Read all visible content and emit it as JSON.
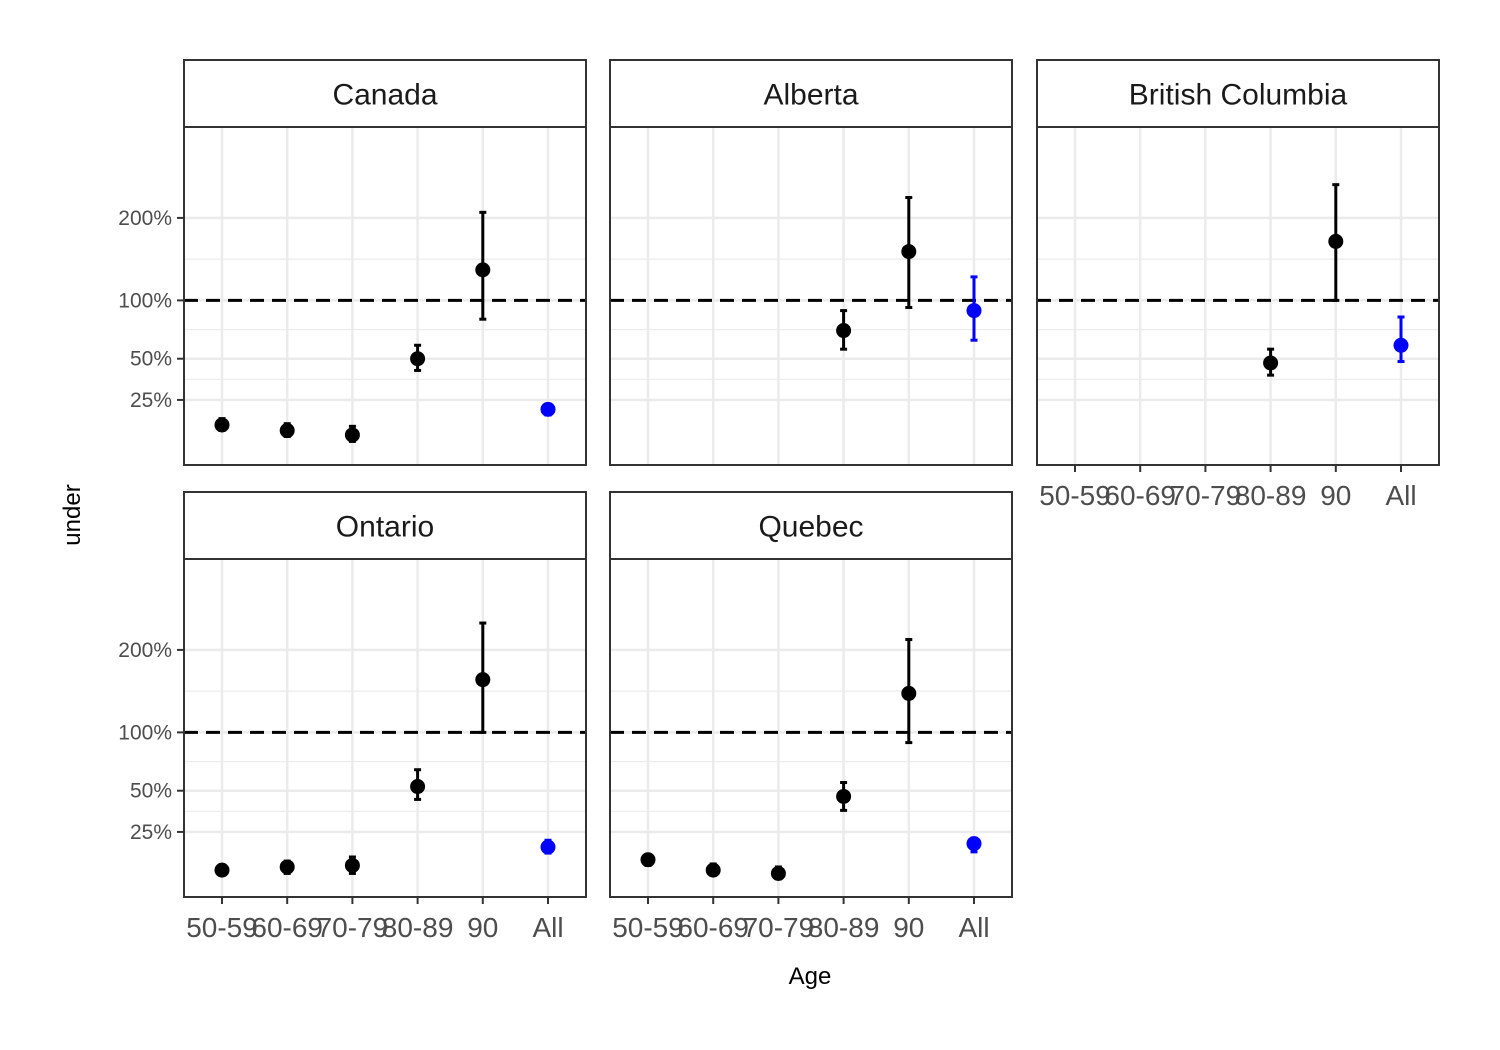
{
  "colors": {
    "point": "#000000",
    "all_point": "#0000ff",
    "grid": "#ebebeb",
    "frame": "#333333",
    "strip_fill": "#ffffff",
    "reference_line": "#000000"
  },
  "chart_data": {
    "type": "scatter",
    "geometry": "point-with-errorbars",
    "facet_layout": "3 columns x 2 rows",
    "xlabel": "Age",
    "ylabel": "under",
    "x_categories": [
      "50-59",
      "60-69",
      "70-79",
      "80-89",
      "90",
      "All"
    ],
    "x_tick_labels": [
      "50-59",
      "60-69",
      "70-79",
      "80-89",
      "90",
      "All"
    ],
    "y_scale": "sqrt",
    "y_ticks": [
      0.25,
      0.5,
      1.0,
      2.0
    ],
    "y_tick_labels": [
      "25%",
      "50%",
      "100%",
      "200%"
    ],
    "ylim": [
      0.03,
      3.5
    ],
    "reference_line": {
      "y": 1.0,
      "style": "dashed"
    },
    "grid": true,
    "panels": [
      {
        "name": "Canada",
        "points": [
          {
            "x": "50-59",
            "y": 0.14,
            "ymin": 0.12,
            "ymax": 0.165
          },
          {
            "x": "60-69",
            "y": 0.12,
            "ymin": 0.1,
            "ymax": 0.145
          },
          {
            "x": "70-79",
            "y": 0.105,
            "ymin": 0.085,
            "ymax": 0.135
          },
          {
            "x": "80-89",
            "y": 0.5,
            "ymin": 0.42,
            "ymax": 0.6
          },
          {
            "x": "90",
            "y": 1.33,
            "ymin": 0.82,
            "ymax": 2.08
          },
          {
            "x": "All",
            "y": 0.205,
            "ymin": 0.18,
            "ymax": 0.23
          }
        ]
      },
      {
        "name": "Alberta",
        "points": [
          {
            "x": "80-89",
            "y": 0.72,
            "ymin": 0.57,
            "ymax": 0.9
          },
          {
            "x": "90",
            "y": 1.55,
            "ymin": 0.93,
            "ymax": 2.3
          },
          {
            "x": "All",
            "y": 0.9,
            "ymin": 0.64,
            "ymax": 1.25
          }
        ]
      },
      {
        "name": "British Columbia",
        "points": [
          {
            "x": "80-89",
            "y": 0.47,
            "ymin": 0.39,
            "ymax": 0.57
          },
          {
            "x": "90",
            "y": 1.68,
            "ymin": 1.0,
            "ymax": 2.5
          },
          {
            "x": "All",
            "y": 0.6,
            "ymin": 0.48,
            "ymax": 0.84
          }
        ]
      },
      {
        "name": "Ontario",
        "points": [
          {
            "x": "50-59",
            "y": 0.095,
            "ymin": 0.08,
            "ymax": 0.11
          },
          {
            "x": "60-69",
            "y": 0.105,
            "ymin": 0.085,
            "ymax": 0.125
          },
          {
            "x": "70-79",
            "y": 0.11,
            "ymin": 0.085,
            "ymax": 0.14
          },
          {
            "x": "80-89",
            "y": 0.53,
            "ymin": 0.44,
            "ymax": 0.66
          },
          {
            "x": "90",
            "y": 1.6,
            "ymin": 1.0,
            "ymax": 2.4
          },
          {
            "x": "All",
            "y": 0.18,
            "ymin": 0.155,
            "ymax": 0.21
          }
        ]
      },
      {
        "name": "Quebec",
        "points": [
          {
            "x": "50-59",
            "y": 0.13,
            "ymin": 0.11,
            "ymax": 0.145
          },
          {
            "x": "60-69",
            "y": 0.095,
            "ymin": 0.08,
            "ymax": 0.115
          },
          {
            "x": "70-79",
            "y": 0.085,
            "ymin": 0.07,
            "ymax": 0.105
          },
          {
            "x": "80-89",
            "y": 0.46,
            "ymin": 0.37,
            "ymax": 0.56
          },
          {
            "x": "90",
            "y": 1.43,
            "ymin": 0.9,
            "ymax": 2.15
          },
          {
            "x": "All",
            "y": 0.195,
            "ymin": 0.16,
            "ymax": 0.22
          }
        ]
      }
    ]
  }
}
